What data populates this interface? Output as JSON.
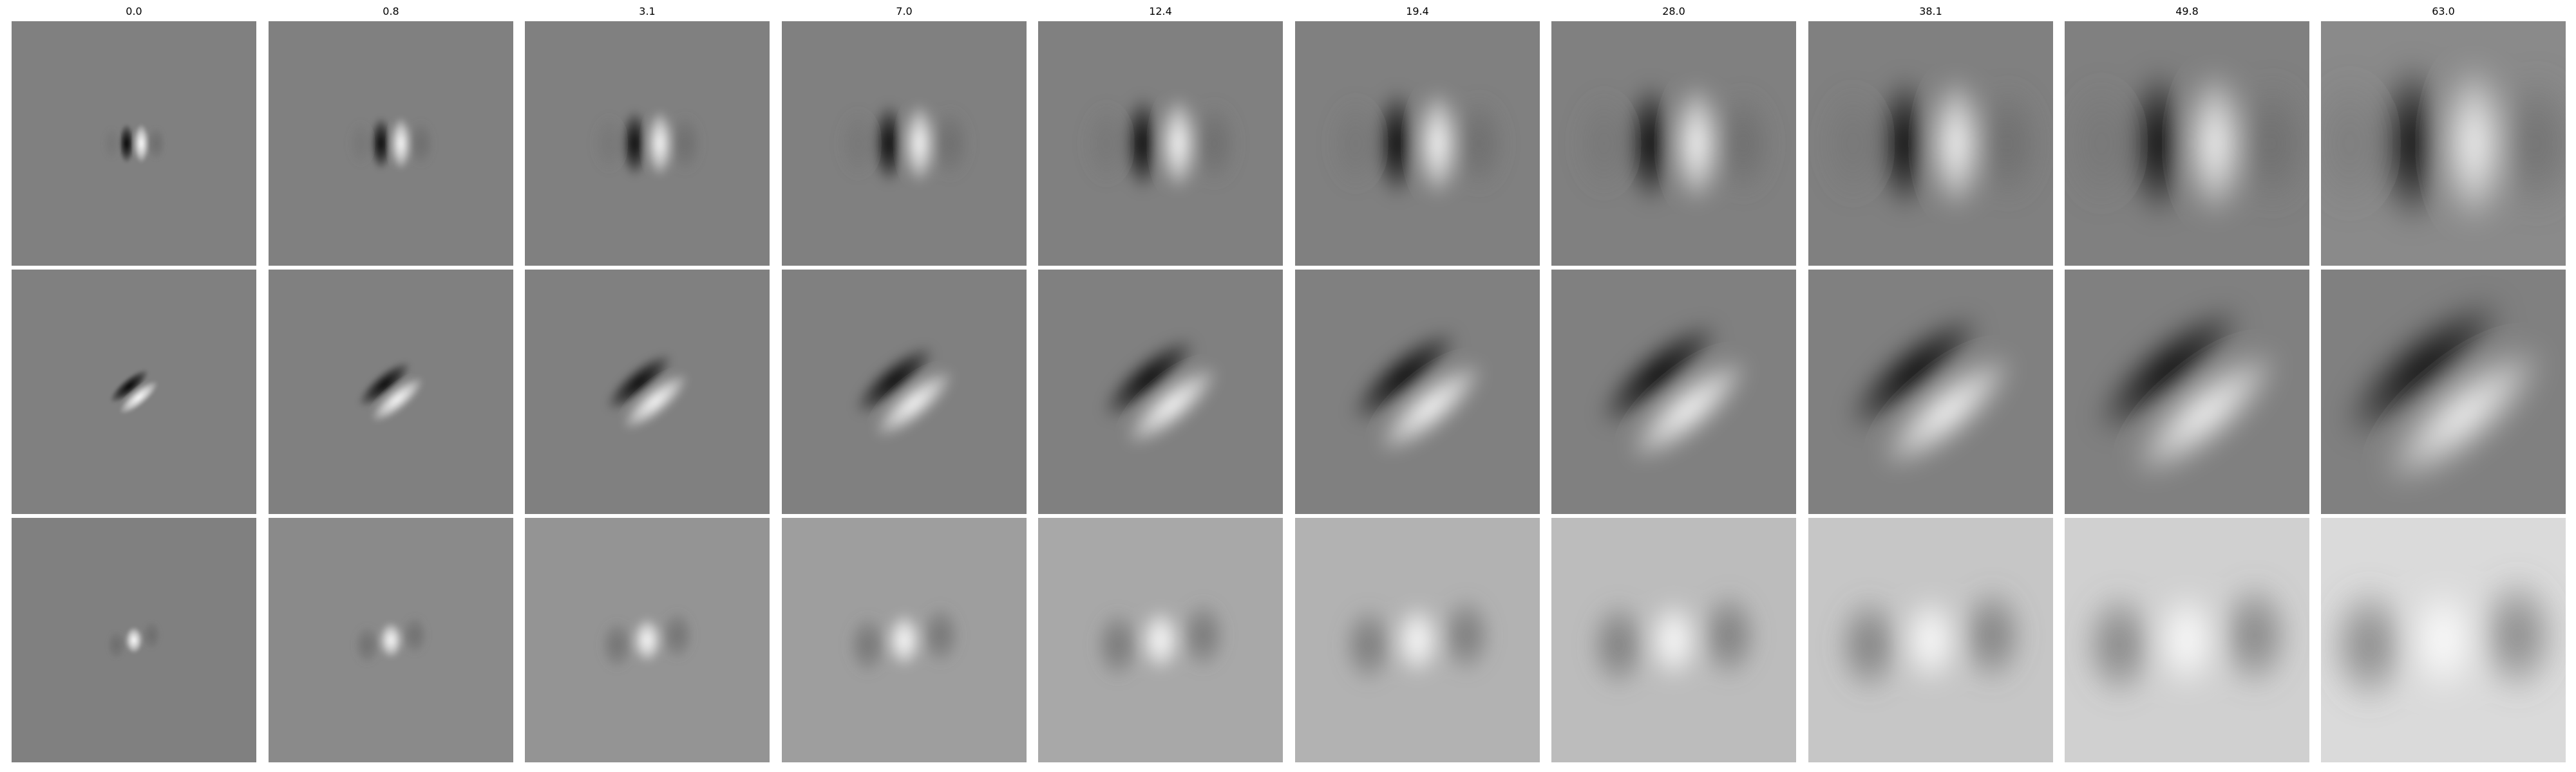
{
  "column_titles": [
    "0.0",
    "0.8",
    "3.1",
    "7.0",
    "12.4",
    "19.4",
    "28.0",
    "38.1",
    "49.8",
    "63.0"
  ],
  "rows": [
    {
      "pattern": "vertical-dark-left-light-right"
    },
    {
      "pattern": "diagonal-dark-upper-left-light-lower-right"
    },
    {
      "pattern": "central-light-blob"
    }
  ]
}
